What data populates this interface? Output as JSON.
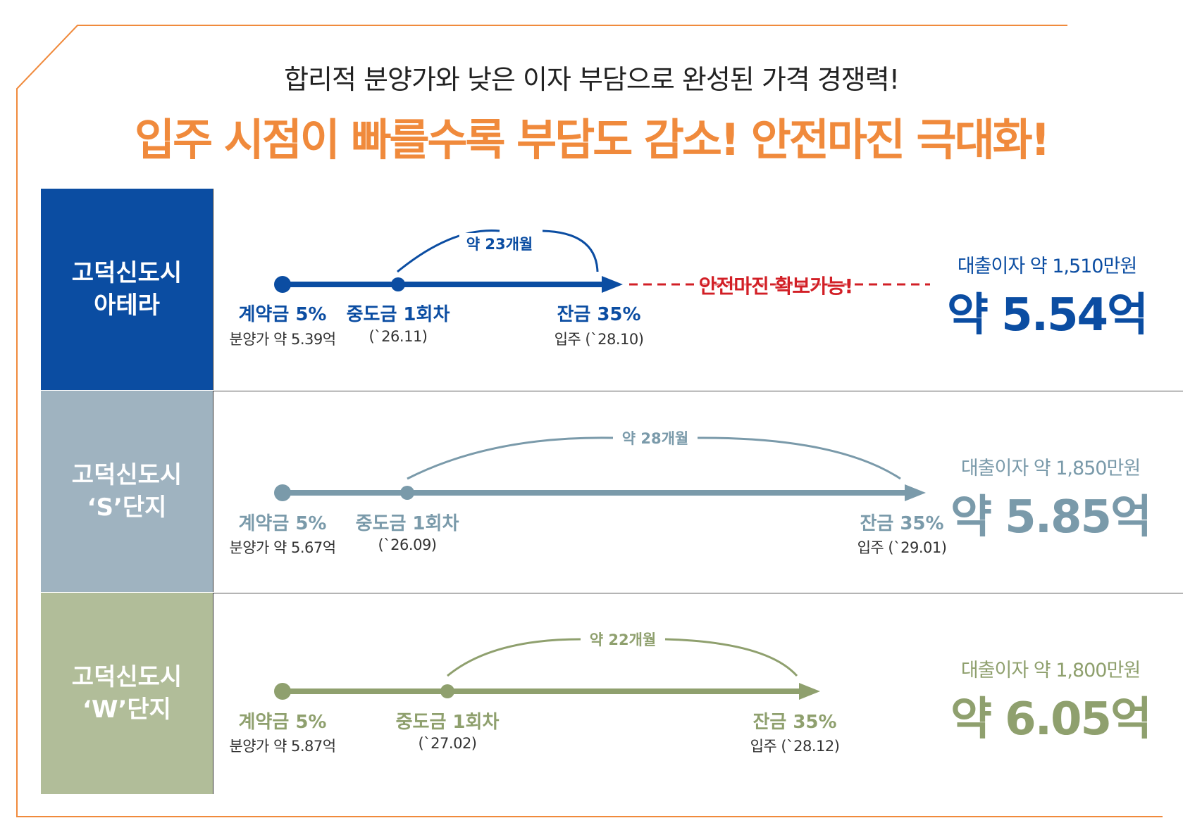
{
  "header": {
    "subtitle": "합리적 분양가와 낮은 이자 부담으로 완성된 가격 경쟁력!",
    "headline": "입주 시점이 빠를수록 부담도 감소! 안전마진 극대화!"
  },
  "colors": {
    "frame": "#f08a3c",
    "headline": "#f08a3c",
    "row1": "#0b4da2",
    "row2": "#7a9aaa",
    "row3": "#8fa06e",
    "row2_box": "#9fb3c0",
    "row3_box": "#b1bd99",
    "margin_note": "#d21f26"
  },
  "rows": [
    {
      "name_line1": "고덕신도시",
      "name_line2": "아테라",
      "stage1": "계약금 5%",
      "stage1_sub": "분양가 약 5.39억",
      "stage2": "중도금 1회차",
      "stage2_sub": "(`26.11)",
      "stage3": "잔금 35%",
      "stage3_sub": "입주 (`28.10)",
      "gap": "약 23개월",
      "loan": "대출이자 약 1,510만원",
      "price": "약 5.54억",
      "margin_note": "안전마진 확보가능!"
    },
    {
      "name_line1": "고덕신도시",
      "name_line2": "‘S’단지",
      "stage1": "계약금 5%",
      "stage1_sub": "분양가 약 5.67억",
      "stage2": "중도금 1회차",
      "stage2_sub": "(`26.09)",
      "stage3": "잔금 35%",
      "stage3_sub": "입주 (`29.01)",
      "gap": "약 28개월",
      "loan": "대출이자 약 1,850만원",
      "price": "약 5.85억"
    },
    {
      "name_line1": "고덕신도시",
      "name_line2": "‘W’단지",
      "stage1": "계약금 5%",
      "stage1_sub": "분양가 약 5.87억",
      "stage2": "중도금 1회차",
      "stage2_sub": "(`27.02)",
      "stage3": "잔금 35%",
      "stage3_sub": "입주 (`28.12)",
      "gap": "약 22개월",
      "loan": "대출이자 약 1,800만원",
      "price": "약 6.05억"
    }
  ]
}
